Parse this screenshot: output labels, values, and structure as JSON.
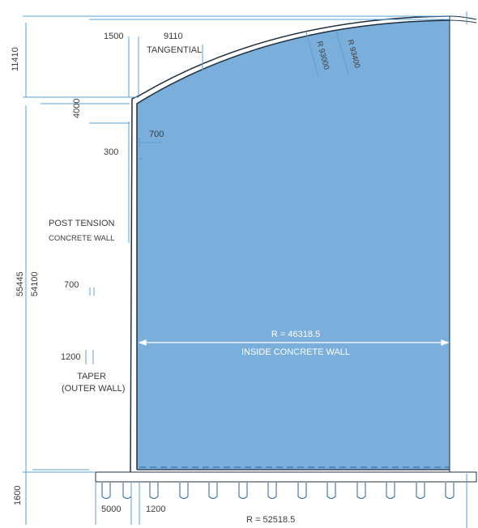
{
  "colors": {
    "tank_fill": "#7aafdb",
    "dimension_line": "#5a9fd4",
    "outline": "#1f2f3f",
    "text": "#3a3a3a"
  },
  "dims": {
    "top_left_offset": "1500",
    "tangential_value": "9110",
    "tangential_label": "TANGENTIAL",
    "radius_inner": "R 93000",
    "radius_outer": "R 93400",
    "dome_height": "11410",
    "wall_top_height": "4000",
    "wall_top_thickness": "700",
    "wall_top_gap": "300",
    "total_height": "55445",
    "wall_height": "54100",
    "wall_thickness_mid": "700",
    "wall_thickness_base": "1200",
    "base_thickness": "1600",
    "footing_width": "5000",
    "footing_wall": "1200",
    "outer_radius": "R = 52518.5",
    "inner_radius": "R = 46318.5",
    "inner_radius_label": "INSIDE CONCRETE WALL"
  },
  "labels": {
    "post_tension_line1": "POST TENSION",
    "post_tension_line2": "CONCRETE WALL",
    "taper_line1": "TAPER",
    "taper_line2": "(OUTER WALL)"
  }
}
